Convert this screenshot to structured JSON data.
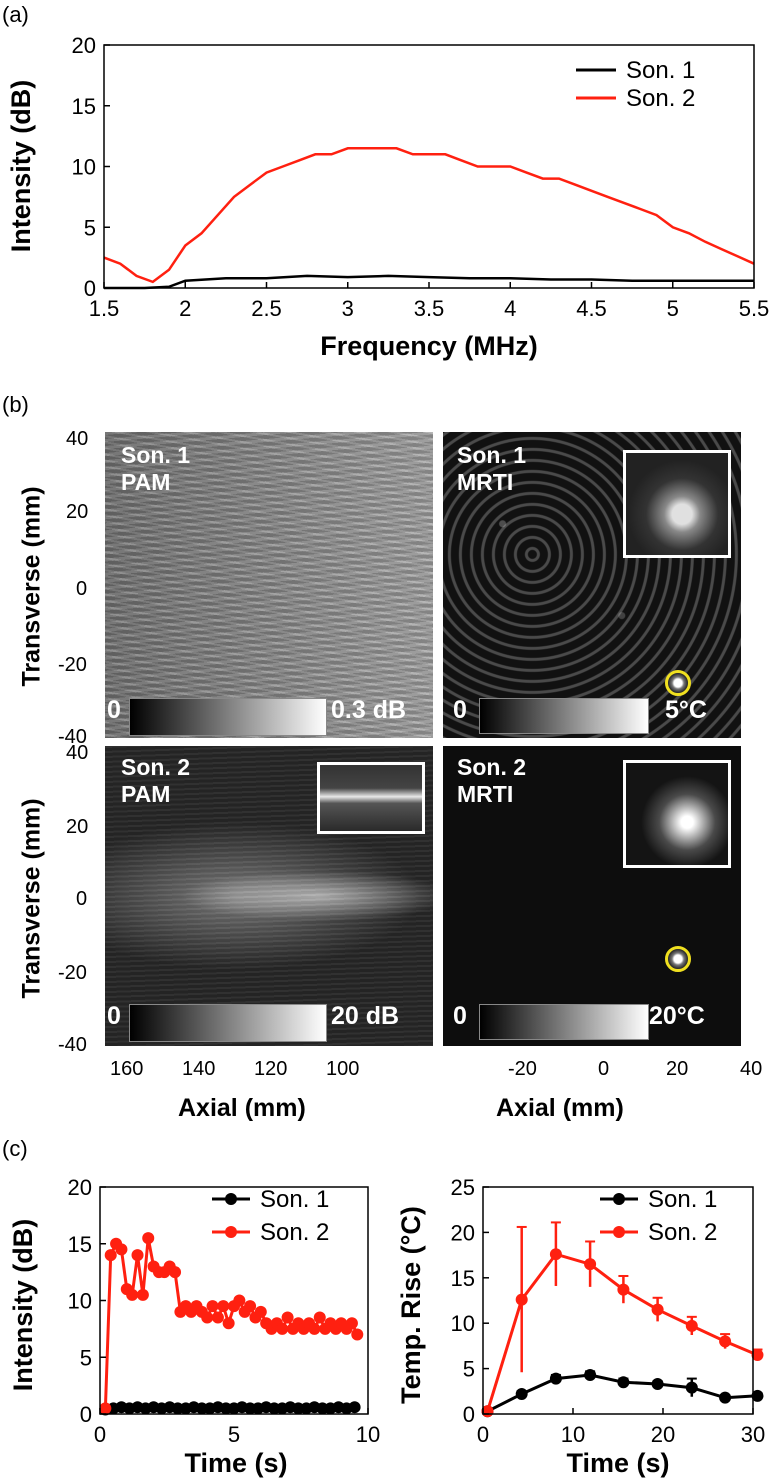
{
  "panels": {
    "a": "(a)",
    "b": "(b)",
    "c": "(c)"
  },
  "colors": {
    "son1": "#000000",
    "son2": "#ff2010",
    "marker_ring": "#f0e020"
  },
  "chart_data": [
    {
      "id": "a",
      "type": "line",
      "xlabel": "Frequency (MHz)",
      "ylabel": "Intensity (dB)",
      "xlim": [
        1.5,
        5.5
      ],
      "ylim": [
        0,
        20
      ],
      "xticks": [
        "1.5",
        "2",
        "2.5",
        "3",
        "3.5",
        "4",
        "4.5",
        "5",
        "5.5"
      ],
      "yticks": [
        "0",
        "5",
        "10",
        "15",
        "20"
      ],
      "legend_position": "top-right",
      "series": [
        {
          "name": "Son. 1",
          "x": [
            1.5,
            1.75,
            1.9,
            2.0,
            2.25,
            2.5,
            2.75,
            3.0,
            3.25,
            3.5,
            3.75,
            4.0,
            4.25,
            4.5,
            4.75,
            5.0,
            5.25,
            5.5
          ],
          "values": [
            0,
            0,
            0.1,
            0.6,
            0.8,
            0.8,
            1.0,
            0.9,
            1.0,
            0.9,
            0.8,
            0.8,
            0.7,
            0.7,
            0.6,
            0.6,
            0.6,
            0.6
          ]
        },
        {
          "name": "Son. 2",
          "x": [
            1.5,
            1.6,
            1.7,
            1.8,
            1.9,
            2.0,
            2.1,
            2.2,
            2.3,
            2.4,
            2.5,
            2.6,
            2.7,
            2.8,
            2.9,
            3.0,
            3.1,
            3.2,
            3.3,
            3.4,
            3.5,
            3.6,
            3.7,
            3.8,
            3.9,
            4.0,
            4.1,
            4.2,
            4.3,
            4.4,
            4.5,
            4.6,
            4.7,
            4.8,
            4.9,
            5.0,
            5.1,
            5.2,
            5.3,
            5.4,
            5.5
          ],
          "values": [
            2.5,
            2.0,
            1.0,
            0.5,
            1.5,
            3.5,
            4.5,
            6.0,
            7.5,
            8.5,
            9.5,
            10.0,
            10.5,
            11.0,
            11.0,
            11.5,
            11.5,
            11.5,
            11.5,
            11.0,
            11.0,
            11.0,
            10.5,
            10.0,
            10.0,
            10.0,
            9.5,
            9.0,
            9.0,
            8.5,
            8.0,
            7.5,
            7.0,
            6.5,
            6.0,
            5.0,
            4.5,
            3.8,
            3.2,
            2.6,
            2.0
          ]
        }
      ]
    },
    {
      "id": "b",
      "type": "heatmap",
      "images": [
        {
          "label1": "Son. 1",
          "label2": "PAM",
          "cb_min": "0",
          "cb_max": "0.3 dB"
        },
        {
          "label1": "Son. 1",
          "label2": "MRTI",
          "cb_min": "0",
          "cb_max": "5°C"
        },
        {
          "label1": "Son. 2",
          "label2": "PAM",
          "cb_min": "0",
          "cb_max": "20 dB"
        },
        {
          "label1": "Son. 2",
          "label2": "MRTI",
          "cb_min": "0",
          "cb_max": "20°C"
        }
      ],
      "ylabel": "Transverse (mm)",
      "yticks": [
        "40",
        "20",
        "0",
        "-20",
        "-40"
      ],
      "left_xlabel": "Axial (mm)",
      "left_xticks": [
        "160",
        "140",
        "120",
        "100"
      ],
      "right_xlabel": "Axial (mm)",
      "right_xticks": [
        "-20",
        "0",
        "20",
        "40"
      ]
    },
    {
      "id": "c-left",
      "type": "line",
      "xlabel": "Time (s)",
      "ylabel": "Intensity (dB)",
      "xlim": [
        0,
        10
      ],
      "ylim": [
        0,
        20
      ],
      "xticks": [
        "0",
        "5",
        "10"
      ],
      "yticks": [
        "0",
        "5",
        "10",
        "15",
        "20"
      ],
      "legend_position": "top-right",
      "series": [
        {
          "name": "Son. 1",
          "x": [
            0.2,
            0.5,
            0.8,
            1.1,
            1.4,
            1.7,
            2.0,
            2.3,
            2.6,
            2.9,
            3.2,
            3.5,
            3.8,
            4.1,
            4.4,
            4.7,
            5.0,
            5.3,
            5.6,
            5.9,
            6.2,
            6.5,
            6.8,
            7.1,
            7.4,
            7.7,
            8.0,
            8.3,
            8.6,
            8.9,
            9.2,
            9.5
          ],
          "values": [
            0.4,
            0.5,
            0.6,
            0.5,
            0.6,
            0.5,
            0.6,
            0.5,
            0.6,
            0.5,
            0.5,
            0.6,
            0.5,
            0.5,
            0.6,
            0.5,
            0.5,
            0.6,
            0.5,
            0.5,
            0.6,
            0.5,
            0.5,
            0.6,
            0.5,
            0.5,
            0.6,
            0.5,
            0.5,
            0.6,
            0.5,
            0.6
          ]
        },
        {
          "name": "Son. 2",
          "x": [
            0.2,
            0.4,
            0.6,
            0.8,
            1.0,
            1.2,
            1.4,
            1.6,
            1.8,
            2.0,
            2.2,
            2.4,
            2.6,
            2.8,
            3.0,
            3.2,
            3.4,
            3.6,
            3.8,
            4.0,
            4.2,
            4.4,
            4.6,
            4.8,
            5.0,
            5.2,
            5.4,
            5.6,
            5.8,
            6.0,
            6.2,
            6.4,
            6.6,
            6.8,
            7.0,
            7.2,
            7.4,
            7.6,
            7.8,
            8.0,
            8.2,
            8.4,
            8.6,
            8.8,
            9.0,
            9.2,
            9.4,
            9.6
          ],
          "values": [
            0.5,
            14.0,
            15.0,
            14.5,
            11.0,
            10.5,
            14.0,
            10.5,
            15.5,
            13.0,
            12.5,
            12.5,
            13.0,
            12.5,
            9.0,
            9.5,
            9.0,
            9.5,
            9.0,
            8.5,
            9.5,
            8.5,
            9.5,
            8.0,
            9.5,
            10.0,
            9.0,
            9.5,
            8.5,
            9.0,
            8.0,
            7.5,
            8.0,
            7.5,
            8.5,
            7.5,
            8.0,
            7.5,
            8.0,
            7.5,
            8.5,
            7.5,
            8.0,
            7.5,
            8.0,
            7.5,
            8.0,
            7.0
          ]
        }
      ]
    },
    {
      "id": "c-right",
      "type": "line",
      "xlabel": "Time (s)",
      "ylabel": "Temp. Rise (°C)",
      "xlim": [
        0,
        30
      ],
      "ylim": [
        0,
        25
      ],
      "xticks": [
        "0",
        "10",
        "20",
        "30"
      ],
      "yticks": [
        "0",
        "5",
        "10",
        "15",
        "20",
        "25"
      ],
      "legend_position": "top-right",
      "series": [
        {
          "name": "Son. 1",
          "x": [
            0.5,
            4.3,
            8.1,
            11.9,
            15.6,
            19.4,
            23.2,
            26.9,
            30.5
          ],
          "values": [
            0.3,
            2.2,
            3.9,
            4.3,
            3.5,
            3.3,
            2.9,
            1.8,
            2.0
          ],
          "err": [
            0,
            0.3,
            0.4,
            0.4,
            0.4,
            0.3,
            1.0,
            0.3,
            0.3
          ]
        },
        {
          "name": "Son. 2",
          "x": [
            0.5,
            4.3,
            8.1,
            11.9,
            15.6,
            19.4,
            23.2,
            26.9,
            30.5
          ],
          "values": [
            0.3,
            12.6,
            17.6,
            16.5,
            13.7,
            11.5,
            9.7,
            8.0,
            6.5
          ],
          "err": [
            0,
            8.0,
            3.5,
            2.5,
            1.5,
            1.3,
            1.0,
            0.8,
            0.6
          ]
        }
      ]
    }
  ]
}
